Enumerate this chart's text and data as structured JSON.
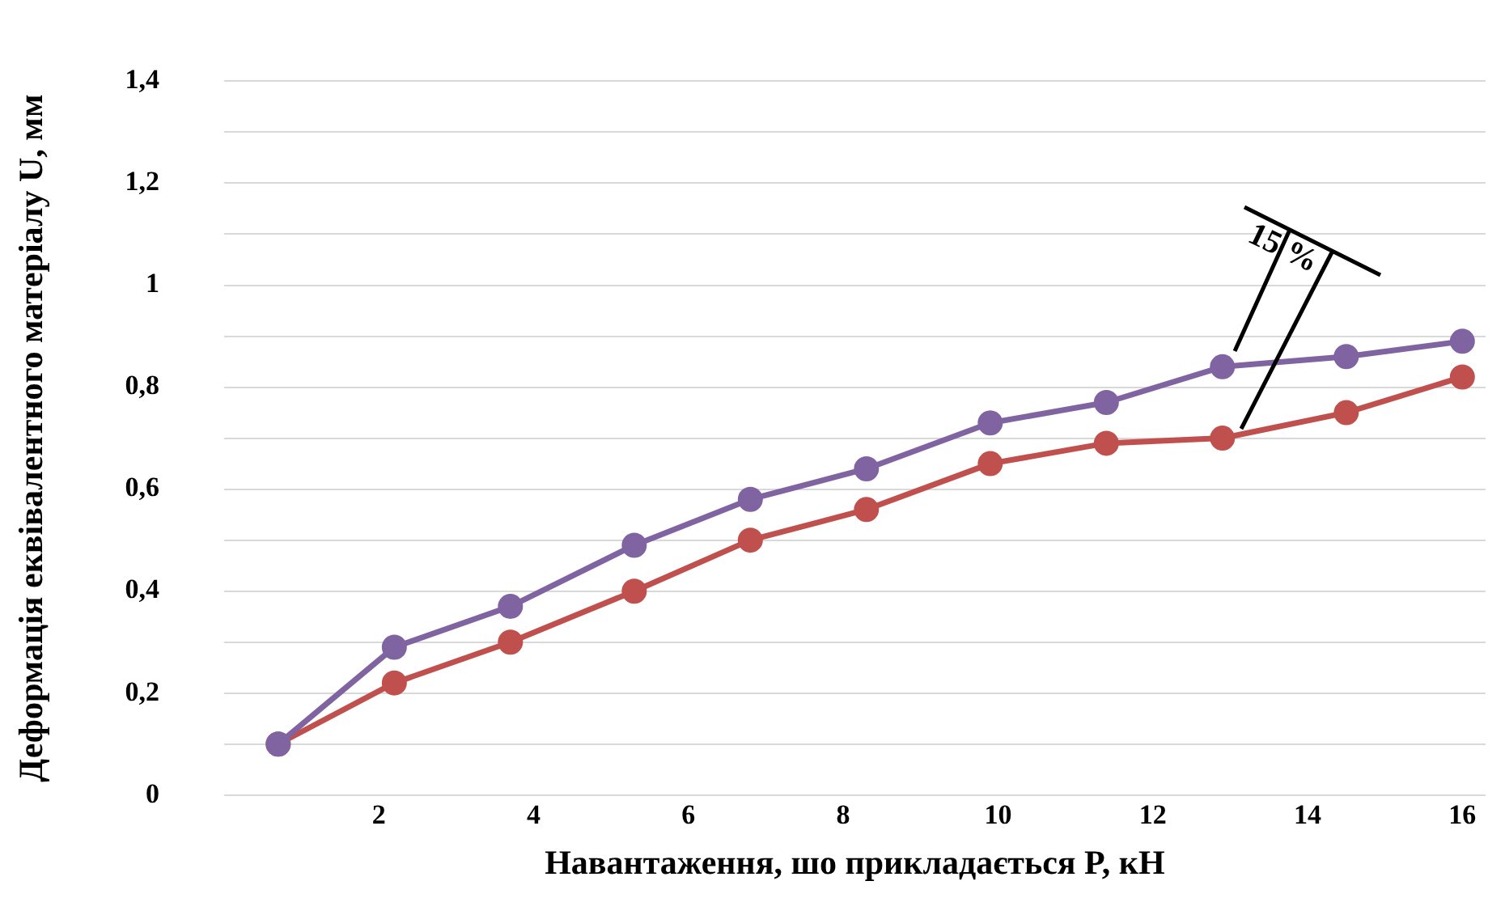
{
  "chart_data": {
    "type": "line",
    "xlabel": "Навантаження, шо прикладається P, кН",
    "ylabel": "Деформація еквівалентного матеріалу U, мм",
    "x": [
      0.7,
      2.2,
      3.7,
      5.3,
      6.8,
      8.3,
      9.9,
      11.4,
      12.9,
      14.5,
      16
    ],
    "series": [
      {
        "color": "#8064a2",
        "values": [
          0.1,
          0.29,
          0.37,
          0.49,
          0.58,
          0.64,
          0.73,
          0.77,
          0.84,
          0.86,
          0.89
        ]
      },
      {
        "color": "#c0504d",
        "values": [
          0.1,
          0.22,
          0.3,
          0.4,
          0.5,
          0.56,
          0.65,
          0.69,
          0.7,
          0.75,
          0.82
        ]
      }
    ],
    "xlim": [
      0,
      16.3
    ],
    "xticks": [
      2,
      4,
      6,
      8,
      10,
      12,
      14,
      16
    ],
    "ylim": [
      0,
      1.4
    ],
    "yticks": [
      {
        "value": 0,
        "label": "0"
      },
      {
        "value": 0.1,
        "label": null
      },
      {
        "value": 0.2,
        "label": "0,2"
      },
      {
        "value": 0.3,
        "label": null
      },
      {
        "value": 0.4,
        "label": "0,4"
      },
      {
        "value": 0.5,
        "label": null
      },
      {
        "value": 0.6,
        "label": "0,6"
      },
      {
        "value": 0.7,
        "label": null
      },
      {
        "value": 0.8,
        "label": "0,8"
      },
      {
        "value": 0.9,
        "label": null
      },
      {
        "value": 1,
        "label": "1"
      },
      {
        "value": 1.1,
        "label": null
      },
      {
        "value": 1.2,
        "label": "1,2"
      },
      {
        "value": 1.3,
        "label": null
      },
      {
        "value": 1.4,
        "label": "1,4"
      }
    ],
    "grid": "y",
    "marker": "circle",
    "line_style": "solid",
    "legend": false,
    "annotations": [
      {
        "text": "15 %",
        "x": 12.9,
        "y": 0.84
      }
    ]
  }
}
